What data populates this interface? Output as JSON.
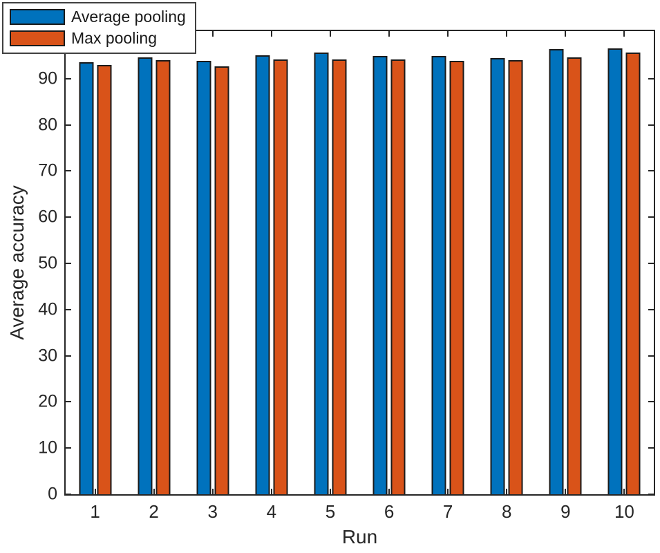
{
  "chart_data": {
    "type": "bar",
    "title": "",
    "xlabel": "Run",
    "ylabel": "Average accuracy",
    "categories": [
      "1",
      "2",
      "3",
      "4",
      "5",
      "6",
      "7",
      "8",
      "9",
      "10"
    ],
    "series": [
      {
        "name": "Average pooling",
        "color": "#0072BD",
        "values": [
          93.5,
          94.6,
          93.8,
          95.0,
          95.7,
          94.9,
          94.9,
          94.4,
          96.4,
          96.5
        ]
      },
      {
        "name": "Max pooling",
        "color": "#D95319",
        "values": [
          93.0,
          94.0,
          92.7,
          94.1,
          94.2,
          94.1,
          93.8,
          94.0,
          94.6,
          95.6
        ]
      }
    ],
    "ylim": [
      0,
      100.3
    ],
    "yticks": [
      0,
      10,
      20,
      30,
      40,
      50,
      60,
      70,
      80,
      90
    ],
    "grid": false,
    "legend_position": "top-left",
    "bar_edge_color": "#1a1a1a",
    "axis_color": "#262626",
    "background_color": "#ffffff"
  }
}
